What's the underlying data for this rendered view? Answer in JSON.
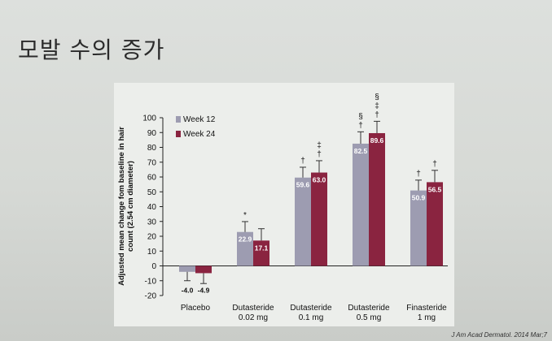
{
  "slide": {
    "title": "모발 수의 증가"
  },
  "citation": "J Am Acad Dermatol. 2014 Mar;7",
  "chart_data": {
    "type": "bar",
    "categories": [
      [
        "Placebo"
      ],
      [
        "Dutasteride",
        "0.02 mg"
      ],
      [
        "Dutasteride",
        "0.1 mg"
      ],
      [
        "Dutasteride",
        "0.5 mg"
      ],
      [
        "Finasteride",
        "1 mg"
      ]
    ],
    "series": [
      {
        "name": "Week 12",
        "color": "#9d9cb1",
        "values": [
          -4.0,
          22.9,
          59.6,
          82.5,
          50.9
        ],
        "labels": [
          "-4.0",
          "22.9",
          "59.6",
          "82.5",
          "50.9"
        ],
        "err": [
          6,
          7,
          7,
          8,
          7
        ]
      },
      {
        "name": "Week 24",
        "color": "#8a2440",
        "values": [
          -4.9,
          17.1,
          63.0,
          89.6,
          56.5
        ],
        "labels": [
          "-4.9",
          "17.1",
          "63.0",
          "89.6",
          "56.5"
        ],
        "err": [
          7,
          8,
          8,
          8,
          8
        ]
      }
    ],
    "annotations": [
      {
        "category": 1,
        "series": 0,
        "lines": [
          "*"
        ]
      },
      {
        "category": 2,
        "series": 0,
        "lines": [
          "†"
        ]
      },
      {
        "category": 2,
        "series": 1,
        "lines": [
          "‡",
          "†"
        ]
      },
      {
        "category": 3,
        "series": 0,
        "lines": [
          "§",
          "†"
        ]
      },
      {
        "category": 3,
        "series": 1,
        "lines": [
          "§",
          "‡",
          "†"
        ]
      },
      {
        "category": 4,
        "series": 0,
        "lines": [
          "†"
        ]
      },
      {
        "category": 4,
        "series": 1,
        "lines": [
          "†"
        ]
      }
    ],
    "ylabel": [
      "Adjusted mean change fom baseline in hair",
      "count (2.54 cm diameter)"
    ],
    "xlabel": "",
    "ylim": [
      -20,
      100
    ],
    "yticks": [
      -20,
      -10,
      0,
      10,
      20,
      30,
      40,
      50,
      60,
      70,
      80,
      90,
      100
    ],
    "legend_position": "top-left",
    "grid": false
  }
}
